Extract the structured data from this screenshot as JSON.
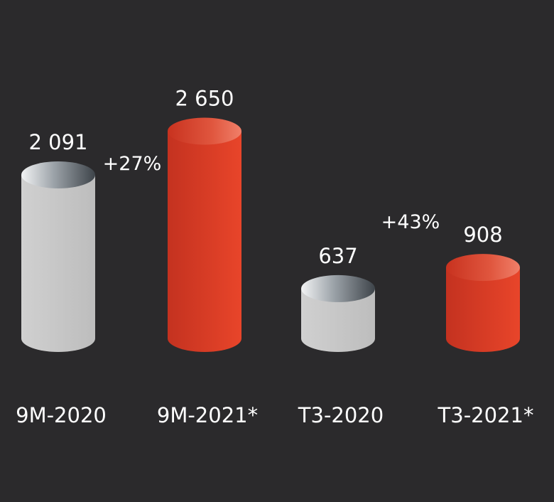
{
  "chart_data": {
    "type": "bar",
    "categories": [
      "9M-2020",
      "9M-2021*",
      "T3-2020",
      "T3-2021*"
    ],
    "values": [
      2091,
      2650,
      637,
      908
    ],
    "value_labels": [
      "2 091",
      "2 650",
      "637",
      "908"
    ],
    "growth_labels": [
      "+27%",
      "+43%"
    ],
    "colors": [
      "#c2c2c2",
      "#d9371f",
      "#c2c2c2",
      "#d9371f"
    ],
    "style": "cylinder",
    "title": "",
    "xlabel": "",
    "ylabel": "",
    "grid": false
  }
}
